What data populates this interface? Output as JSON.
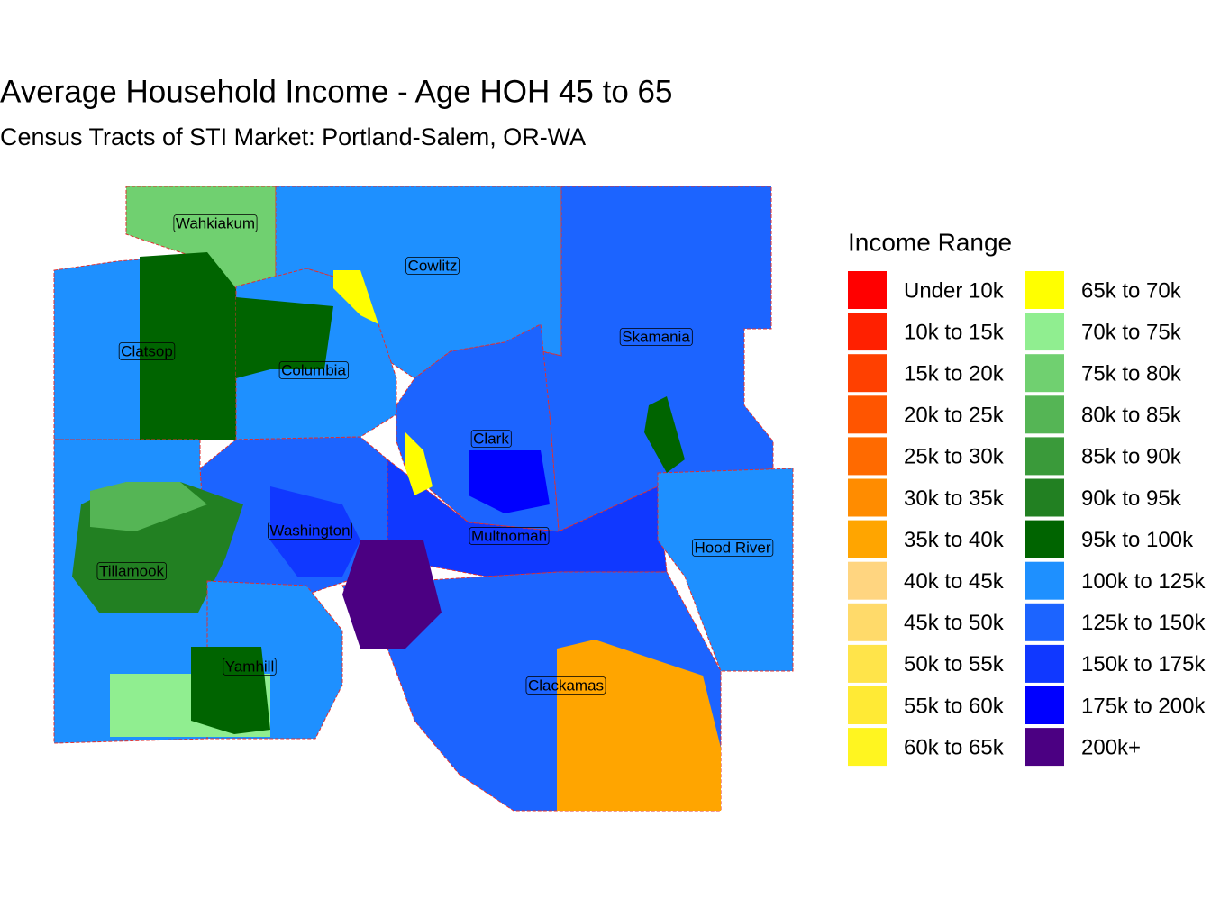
{
  "title": "Average Household Income - Age HOH 45 to 65",
  "subtitle": "Census Tracts of STI Market: Portland-Salem, OR-WA",
  "legend": {
    "title": "Income Range",
    "items": [
      {
        "label": "Under 10k",
        "color": "#ff0000"
      },
      {
        "label": "10k to 15k",
        "color": "#ff2000"
      },
      {
        "label": "15k to 20k",
        "color": "#ff4000"
      },
      {
        "label": "20k to 25k",
        "color": "#ff5500"
      },
      {
        "label": "25k to 30k",
        "color": "#ff6a00"
      },
      {
        "label": "30k to 35k",
        "color": "#ff8c00"
      },
      {
        "label": "35k to 40k",
        "color": "#ffa500"
      },
      {
        "label": "40k to 45k",
        "color": "#ffd580"
      },
      {
        "label": "45k to 50k",
        "color": "#ffda6a"
      },
      {
        "label": "50k to 55k",
        "color": "#ffe44a"
      },
      {
        "label": "55k to 60k",
        "color": "#ffea35"
      },
      {
        "label": "60k to 65k",
        "color": "#fff520"
      },
      {
        "label": "65k to 70k",
        "color": "#ffff00"
      },
      {
        "label": "70k to 75k",
        "color": "#90ee90"
      },
      {
        "label": "75k to 80k",
        "color": "#70d070"
      },
      {
        "label": "80k to 85k",
        "color": "#55b555"
      },
      {
        "label": "85k to 90k",
        "color": "#3a9a3a"
      },
      {
        "label": "90k to 95k",
        "color": "#228022"
      },
      {
        "label": "95k to 100k",
        "color": "#006400"
      },
      {
        "label": "100k to 125k",
        "color": "#1e90ff"
      },
      {
        "label": "125k to 150k",
        "color": "#1c64ff"
      },
      {
        "label": "150k to 175k",
        "color": "#1038ff"
      },
      {
        "label": "175k to 200k",
        "color": "#0000ff"
      },
      {
        "label": "200k+",
        "color": "#4b0082"
      }
    ]
  },
  "counties": [
    "Wahkiakum",
    "Cowlitz",
    "Clatsop",
    "Columbia",
    "Skamania",
    "Clark",
    "Washington",
    "Multnomah",
    "Hood River",
    "Tillamook",
    "Yamhill",
    "Clackamas"
  ]
}
